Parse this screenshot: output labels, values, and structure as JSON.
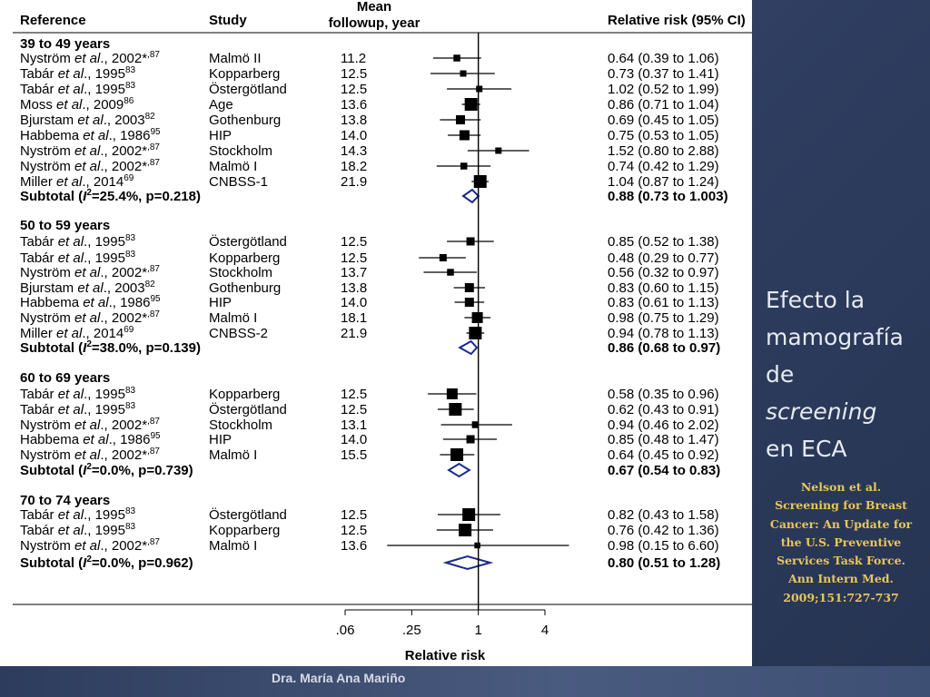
{
  "slide": {
    "title_lines": [
      "Efecto la",
      "mamografía",
      "de"
    ],
    "title_italic": "screening",
    "title_end": "en ECA",
    "citation": "Nelson et al. Screening for Breast Cancer: An Update for the U.S. Preventive Services Task Force. Ann Intern Med. 2009;151:727-737",
    "footer": "Dra. María Ana Mariño"
  },
  "chart_data": {
    "type": "forest",
    "headers": {
      "reference": "Reference",
      "study": "Study",
      "followup_line1": "Mean",
      "followup_line2": "followup, year",
      "rr": "Relative risk (95% CI)"
    },
    "xlabel": "Relative risk",
    "scale": "log",
    "xlim": [
      0.06,
      4
    ],
    "xticks": [
      {
        "value": 0.0625,
        "label": ".06"
      },
      {
        "value": 0.25,
        "label": ".25"
      },
      {
        "value": 1,
        "label": "1"
      },
      {
        "value": 4,
        "label": "4"
      }
    ],
    "groups": [
      {
        "label": "39 to 49 years",
        "studies": [
          {
            "author": "Nyström",
            "year": "2002*",
            "ref": ",87",
            "study": "Malmö II",
            "followup": "11.2",
            "rr": 0.64,
            "lo": 0.39,
            "hi": 1.06,
            "ci_text": "0.64 (0.39 to 1.06)",
            "w": 0.35
          },
          {
            "author": "Tabár",
            "year": "1995",
            "ref": "83",
            "study": "Kopparberg",
            "followup": "12.5",
            "rr": 0.73,
            "lo": 0.37,
            "hi": 1.41,
            "ci_text": "0.73 (0.37 to 1.41)",
            "w": 0.3
          },
          {
            "author": "Tabár",
            "year": "1995",
            "ref": "83",
            "study": "Östergötland",
            "followup": "12.5",
            "rr": 1.02,
            "lo": 0.52,
            "hi": 1.99,
            "ci_text": "1.02 (0.52 to 1.99)",
            "w": 0.3
          },
          {
            "author": "Moss",
            "year": "2009",
            "ref": "86",
            "study": "Age",
            "followup": "13.6",
            "rr": 0.86,
            "lo": 0.71,
            "hi": 1.04,
            "ci_text": "0.86 (0.71 to 1.04)",
            "w": 1.0
          },
          {
            "author": "Bjurstam",
            "year": "2003",
            "ref": "82",
            "study": "Gothenburg",
            "followup": "13.8",
            "rr": 0.69,
            "lo": 0.45,
            "hi": 1.05,
            "ci_text": "0.69 (0.45 to 1.05)",
            "w": 0.6
          },
          {
            "author": "Habbema",
            "year": "1986",
            "ref": "95",
            "study": "HIP",
            "followup": "14.0",
            "rr": 0.75,
            "lo": 0.53,
            "hi": 1.05,
            "ci_text": "0.75 (0.53 to 1.05)",
            "w": 0.7
          },
          {
            "author": "Nyström",
            "year": "2002*",
            "ref": ",87",
            "study": "Stockholm",
            "followup": "14.3",
            "rr": 1.52,
            "lo": 0.8,
            "hi": 2.88,
            "ci_text": "1.52 (0.80 to 2.88)",
            "w": 0.3
          },
          {
            "author": "Nyström",
            "year": "2002*",
            "ref": ",87",
            "study": "Malmö I",
            "followup": "18.2",
            "rr": 0.74,
            "lo": 0.42,
            "hi": 1.29,
            "ci_text": "0.74 (0.42 to 1.29)",
            "w": 0.35
          },
          {
            "author": "Miller",
            "year": "2014",
            "ref": "69",
            "study": "CNBSS-1",
            "followup": "21.9",
            "rr": 1.04,
            "lo": 0.87,
            "hi": 1.24,
            "ci_text": "1.04 (0.87 to 1.24)",
            "w": 1.0
          }
        ],
        "subtotal": {
          "i2": "25.4%",
          "p": "p=0.218",
          "rr": 0.88,
          "lo": 0.73,
          "hi": 1.003,
          "ci_text": "0.88 (0.73 to 1.003)"
        }
      },
      {
        "label": "50 to 59 years",
        "studies": [
          {
            "author": "Tabár",
            "year": "1995",
            "ref": "83",
            "study": "Östergötland",
            "followup": "12.5",
            "rr": 0.85,
            "lo": 0.52,
            "hi": 1.38,
            "ci_text": "0.85 (0.52 to 1.38)",
            "w": 0.5
          },
          {
            "author": "Tabár",
            "year": "1995",
            "ref": "83",
            "study": "Kopparberg",
            "followup": "12.5",
            "rr": 0.48,
            "lo": 0.29,
            "hi": 0.77,
            "ci_text": "0.48 (0.29 to 0.77)",
            "w": 0.4
          },
          {
            "author": "Nyström",
            "year": "2002*",
            "ref": ",87",
            "study": "Stockholm",
            "followup": "13.7",
            "rr": 0.56,
            "lo": 0.32,
            "hi": 0.97,
            "ci_text": "0.56 (0.32 to 0.97)",
            "w": 0.35
          },
          {
            "author": "Bjurstam",
            "year": "2003",
            "ref": "82",
            "study": "Gothenburg",
            "followup": "13.8",
            "rr": 0.83,
            "lo": 0.6,
            "hi": 1.15,
            "ci_text": "0.83 (0.60 to 1.15)",
            "w": 0.6
          },
          {
            "author": "Habbema",
            "year": "1986",
            "ref": "95",
            "study": "HIP",
            "followup": "14.0",
            "rr": 0.83,
            "lo": 0.61,
            "hi": 1.13,
            "ci_text": "0.83 (0.61 to 1.13)",
            "w": 0.6
          },
          {
            "author": "Nyström",
            "year": "2002*",
            "ref": ",87",
            "study": "Malmö I",
            "followup": "18.1",
            "rr": 0.98,
            "lo": 0.75,
            "hi": 1.29,
            "ci_text": "0.98 (0.75 to 1.29)",
            "w": 0.8
          },
          {
            "author": "Miller",
            "year": "2014",
            "ref": "69",
            "study": "CNBSS-2",
            "followup": "21.9",
            "rr": 0.94,
            "lo": 0.78,
            "hi": 1.13,
            "ci_text": "0.94 (0.78 to 1.13)",
            "w": 1.0
          }
        ],
        "subtotal": {
          "i2": "38.0%",
          "p": "p=0.139",
          "rr": 0.86,
          "lo": 0.68,
          "hi": 0.97,
          "ci_text": "0.86 (0.68 to 0.97)"
        }
      },
      {
        "label": "60 to 69 years",
        "studies": [
          {
            "author": "Tabár",
            "year": "1995",
            "ref": "83",
            "study": "Kopparberg",
            "followup": "12.5",
            "rr": 0.58,
            "lo": 0.35,
            "hi": 0.96,
            "ci_text": "0.58 (0.35 to 0.96)",
            "w": 0.8
          },
          {
            "author": "Tabár",
            "year": "1995",
            "ref": "83",
            "study": "Östergötland",
            "followup": "12.5",
            "rr": 0.62,
            "lo": 0.43,
            "hi": 0.91,
            "ci_text": "0.62 (0.43 to 0.91)",
            "w": 1.0
          },
          {
            "author": "Nyström",
            "year": "2002*",
            "ref": ",87",
            "study": "Stockholm",
            "followup": "13.1",
            "rr": 0.94,
            "lo": 0.46,
            "hi": 2.02,
            "ci_text": "0.94 (0.46 to 2.02)",
            "w": 0.35
          },
          {
            "author": "Habbema",
            "year": "1986",
            "ref": "95",
            "study": "HIP",
            "followup": "14.0",
            "rr": 0.85,
            "lo": 0.48,
            "hi": 1.47,
            "ci_text": "0.85 (0.48 to 1.47)",
            "w": 0.5
          },
          {
            "author": "Nyström",
            "year": "2002*",
            "ref": ",87",
            "study": "Malmö I",
            "followup": "15.5",
            "rr": 0.64,
            "lo": 0.45,
            "hi": 0.92,
            "ci_text": "0.64 (0.45 to 0.92)",
            "w": 1.0
          }
        ],
        "subtotal": {
          "i2": "0.0%",
          "p": "p=0.739",
          "rr": 0.67,
          "lo": 0.54,
          "hi": 0.83,
          "ci_text": "0.67 (0.54 to 0.83)"
        }
      },
      {
        "label": "70 to 74 years",
        "studies": [
          {
            "author": "Tabár",
            "year": "1995",
            "ref": "83",
            "study": "Östergötland",
            "followup": "12.5",
            "rr": 0.82,
            "lo": 0.43,
            "hi": 1.58,
            "ci_text": "0.82 (0.43 to 1.58)",
            "w": 1.0
          },
          {
            "author": "Tabár",
            "year": "1995",
            "ref": "83",
            "study": "Kopparberg",
            "followup": "12.5",
            "rr": 0.76,
            "lo": 0.42,
            "hi": 1.36,
            "ci_text": "0.76 (0.42 to 1.36)",
            "w": 1.0
          },
          {
            "author": "Nyström",
            "year": "2002*",
            "ref": ",87",
            "study": "Malmö I",
            "followup": "13.6",
            "rr": 0.98,
            "lo": 0.15,
            "hi": 6.6,
            "ci_text": "0.98 (0.15 to 6.60)",
            "w": 0.25
          }
        ],
        "subtotal": {
          "i2": "0.0%",
          "p": "p=0.962",
          "rr": 0.8,
          "lo": 0.51,
          "hi": 1.28,
          "ci_text": "0.80 (0.51 to 1.28)"
        }
      }
    ],
    "colors": {
      "marker": "#000000",
      "diamond": "#1a2a8c"
    }
  }
}
